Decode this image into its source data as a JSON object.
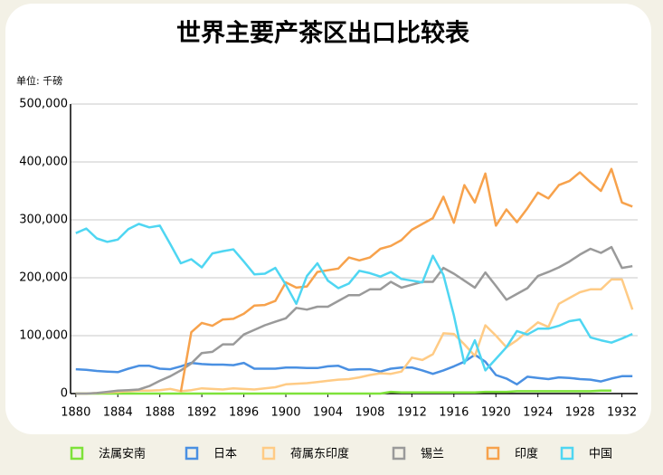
{
  "chart_data": {
    "type": "line",
    "title": "世界主要产茶区出口比较表",
    "unit_label": "单位: 千磅",
    "x": [
      1880,
      1881,
      1882,
      1883,
      1884,
      1885,
      1886,
      1887,
      1888,
      1889,
      1890,
      1891,
      1892,
      1893,
      1894,
      1895,
      1896,
      1897,
      1898,
      1899,
      1900,
      1901,
      1902,
      1903,
      1904,
      1905,
      1906,
      1907,
      1908,
      1909,
      1910,
      1911,
      1912,
      1913,
      1914,
      1915,
      1916,
      1917,
      1918,
      1919,
      1920,
      1921,
      1922,
      1923,
      1924,
      1925,
      1926,
      1927,
      1928,
      1929,
      1930,
      1931,
      1932,
      1933
    ],
    "xlim": [
      1879.5,
      1933.5
    ],
    "xticks": [
      1880,
      1884,
      1888,
      1892,
      1896,
      1900,
      1904,
      1908,
      1912,
      1916,
      1920,
      1924,
      1928,
      1932
    ],
    "ylim": [
      0,
      500000
    ],
    "yticks": [
      0,
      {
        "value": 100000,
        "label": "100,000"
      },
      {
        "value": 200000,
        "label": "200,000"
      },
      {
        "value": 300000,
        "label": "300,000"
      },
      {
        "value": 400000,
        "label": "400,000"
      },
      {
        "value": 500000,
        "label": "500,000"
      }
    ],
    "grid": true,
    "series": [
      {
        "name": "法属安南",
        "color": "#7ee23a",
        "values": [
          0,
          0,
          0,
          0,
          0,
          0,
          0,
          0,
          0,
          0,
          0,
          0,
          0,
          0,
          0,
          0,
          0,
          0,
          0,
          0,
          0,
          0,
          0,
          0,
          0,
          0,
          0,
          0,
          0,
          0,
          3000,
          2000,
          2000,
          2000,
          2000,
          2000,
          2000,
          2000,
          2000,
          3000,
          3000,
          3000,
          4000,
          4000,
          4000,
          4000,
          4000,
          4000,
          4000,
          4000,
          5000,
          5000,
          null,
          null
        ]
      },
      {
        "name": "日本",
        "color": "#4a90e2",
        "values": [
          42000,
          41000,
          39000,
          38000,
          37000,
          43000,
          48000,
          48000,
          43000,
          42000,
          47000,
          53000,
          51000,
          50000,
          50000,
          49000,
          53000,
          43000,
          43000,
          43000,
          45000,
          45000,
          44000,
          44000,
          47000,
          48000,
          41000,
          42000,
          42000,
          38000,
          43000,
          45000,
          45000,
          40000,
          34000,
          40000,
          47000,
          55000,
          67000,
          55000,
          32000,
          26000,
          16000,
          29000,
          27000,
          25000,
          28000,
          27000,
          25000,
          24000,
          21000,
          26000,
          30000,
          30000
        ]
      },
      {
        "name": "荷属东印度",
        "color": "#ffcb85",
        "values": [
          0,
          0,
          1000,
          2000,
          3000,
          4000,
          5000,
          5000,
          6000,
          8000,
          4000,
          6000,
          9000,
          8000,
          7000,
          9000,
          8000,
          7000,
          9000,
          11000,
          16000,
          17000,
          18000,
          20000,
          22000,
          24000,
          25000,
          28000,
          32000,
          35000,
          34000,
          38000,
          62000,
          58000,
          68000,
          104000,
          103000,
          85000,
          65000,
          118000,
          100000,
          80000,
          92000,
          108000,
          123000,
          115000,
          155000,
          165000,
          175000,
          180000,
          180000,
          197000,
          197000,
          145000
        ]
      },
      {
        "name": "锡兰",
        "color": "#9a9a9a",
        "values": [
          0,
          0,
          1000,
          3000,
          5000,
          6000,
          7000,
          13000,
          22000,
          30000,
          40000,
          52000,
          70000,
          72000,
          85000,
          85000,
          102000,
          110000,
          118000,
          124000,
          130000,
          148000,
          145000,
          150000,
          150000,
          160000,
          170000,
          170000,
          180000,
          180000,
          193000,
          183000,
          188000,
          193000,
          193000,
          217000,
          207000,
          195000,
          183000,
          209000,
          186000,
          162000,
          172000,
          182000,
          203000,
          210000,
          218000,
          228000,
          240000,
          250000,
          243000,
          253000,
          217000,
          220000
        ]
      },
      {
        "name": "印度",
        "color": "#f7a24c",
        "values": [
          null,
          null,
          null,
          null,
          null,
          null,
          null,
          null,
          null,
          null,
          3000,
          106000,
          122000,
          117000,
          128000,
          129000,
          138000,
          152000,
          153000,
          160000,
          192000,
          183000,
          185000,
          210000,
          213000,
          216000,
          235000,
          230000,
          235000,
          250000,
          255000,
          265000,
          283000,
          293000,
          303000,
          340000,
          295000,
          360000,
          330000,
          380000,
          290000,
          318000,
          296000,
          320000,
          347000,
          337000,
          360000,
          367000,
          382000,
          365000,
          350000,
          388000,
          330000,
          323000
        ]
      },
      {
        "name": "中国",
        "color": "#4fd6f2",
        "values": [
          277000,
          285000,
          268000,
          262000,
          266000,
          284000,
          293000,
          287000,
          290000,
          258000,
          225000,
          232000,
          218000,
          242000,
          246000,
          249000,
          228000,
          206000,
          207000,
          217000,
          188000,
          155000,
          203000,
          225000,
          195000,
          182000,
          190000,
          212000,
          208000,
          202000,
          210000,
          198000,
          195000,
          192000,
          238000,
          205000,
          135000,
          52000,
          92000,
          40000,
          60000,
          80000,
          108000,
          102000,
          112000,
          112000,
          117000,
          125000,
          128000,
          97000,
          92000,
          88000,
          95000,
          103000
        ]
      }
    ]
  }
}
